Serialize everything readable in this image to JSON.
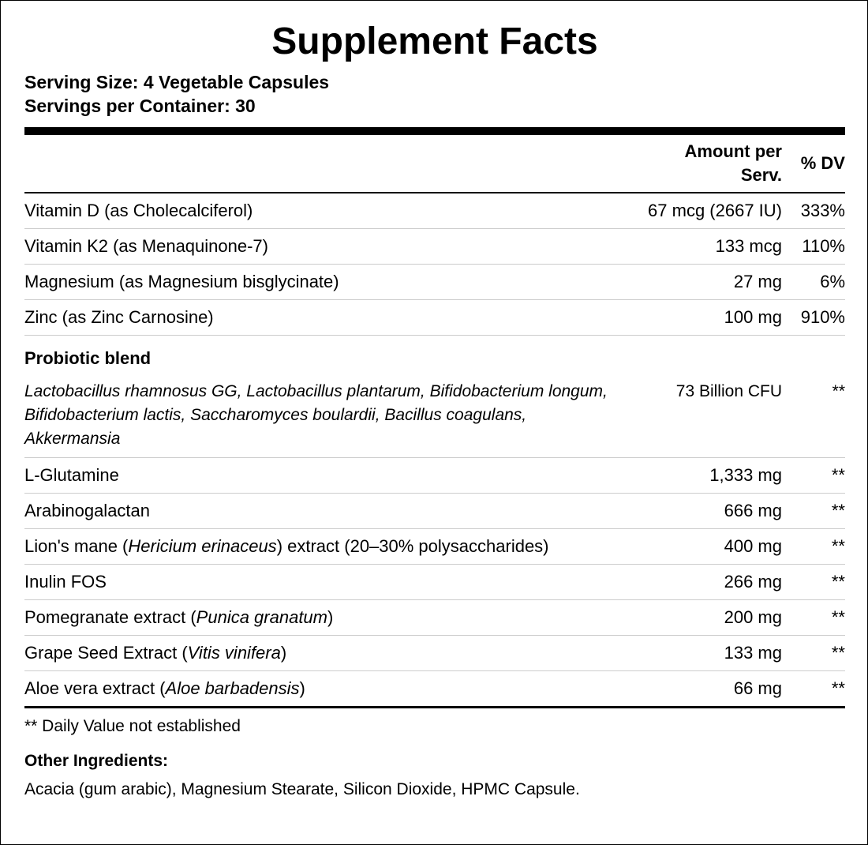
{
  "title": "Supplement Facts",
  "serving_size": "Serving Size: 4 Vegetable Capsules",
  "servings_per_container": "Servings per Container: 30",
  "table": {
    "header": {
      "amount": "Amount per Serv.",
      "dv": "% DV"
    },
    "rows": [
      {
        "name": [
          {
            "text": "Vitamin D (as Cholecalciferol)",
            "italic": false
          }
        ],
        "amount": "67 mcg (2667 IU)",
        "dv": "333%"
      },
      {
        "name": [
          {
            "text": "Vitamin K2 (as Menaquinone-7)",
            "italic": false
          }
        ],
        "amount": "133 mcg",
        "dv": "110%"
      },
      {
        "name": [
          {
            "text": "Magnesium (as Magnesium bisglycinate)",
            "italic": false
          }
        ],
        "amount": "27 mg",
        "dv": "6%"
      },
      {
        "name": [
          {
            "text": "Zinc (as Zinc Carnosine)",
            "italic": false
          }
        ],
        "amount": "100 mg",
        "dv": "910%"
      },
      {
        "heading": "Probiotic blend"
      },
      {
        "name": [
          {
            "text": "Lactobacillus rhamnosus GG, Lactobacillus plantarum, Bifidobacterium longum, Bifidobacterium lactis, Saccharomyces boulardii, Bacillus coagulans, Akkermansia",
            "italic": true
          }
        ],
        "amount": "73 Billion CFU",
        "dv": "**"
      },
      {
        "name": [
          {
            "text": "L-Glutamine",
            "italic": false
          }
        ],
        "amount": "1,333 mg",
        "dv": "**"
      },
      {
        "name": [
          {
            "text": "Arabinogalactan",
            "italic": false
          }
        ],
        "amount": "666 mg",
        "dv": "**"
      },
      {
        "name": [
          {
            "text": "Lion's mane (",
            "italic": false
          },
          {
            "text": "Hericium erinaceus",
            "italic": true
          },
          {
            "text": ") extract (20–30% polysaccharides)",
            "italic": false
          }
        ],
        "amount": "400 mg",
        "dv": "**"
      },
      {
        "name": [
          {
            "text": "Inulin FOS",
            "italic": false
          }
        ],
        "amount": "266 mg",
        "dv": "**"
      },
      {
        "name": [
          {
            "text": "Pomegranate extract (",
            "italic": false
          },
          {
            "text": "Punica granatum",
            "italic": true
          },
          {
            "text": ")",
            "italic": false
          }
        ],
        "amount": "200 mg",
        "dv": "**"
      },
      {
        "name": [
          {
            "text": "Grape Seed Extract (",
            "italic": false
          },
          {
            "text": "Vitis vinifera",
            "italic": true
          },
          {
            "text": ")",
            "italic": false
          }
        ],
        "amount": "133 mg",
        "dv": "**"
      },
      {
        "name": [
          {
            "text": "Aloe vera extract (",
            "italic": false
          },
          {
            "text": "Aloe barbadensis",
            "italic": true
          },
          {
            "text": ")",
            "italic": false
          }
        ],
        "amount": "66 mg",
        "dv": "**"
      }
    ]
  },
  "footnote": "** Daily Value not established",
  "other_ingredients": {
    "heading": "Other Ingredients:",
    "text": "Acacia (gum arabic), Magnesium Stearate, Silicon Dioxide, HPMC Capsule."
  }
}
